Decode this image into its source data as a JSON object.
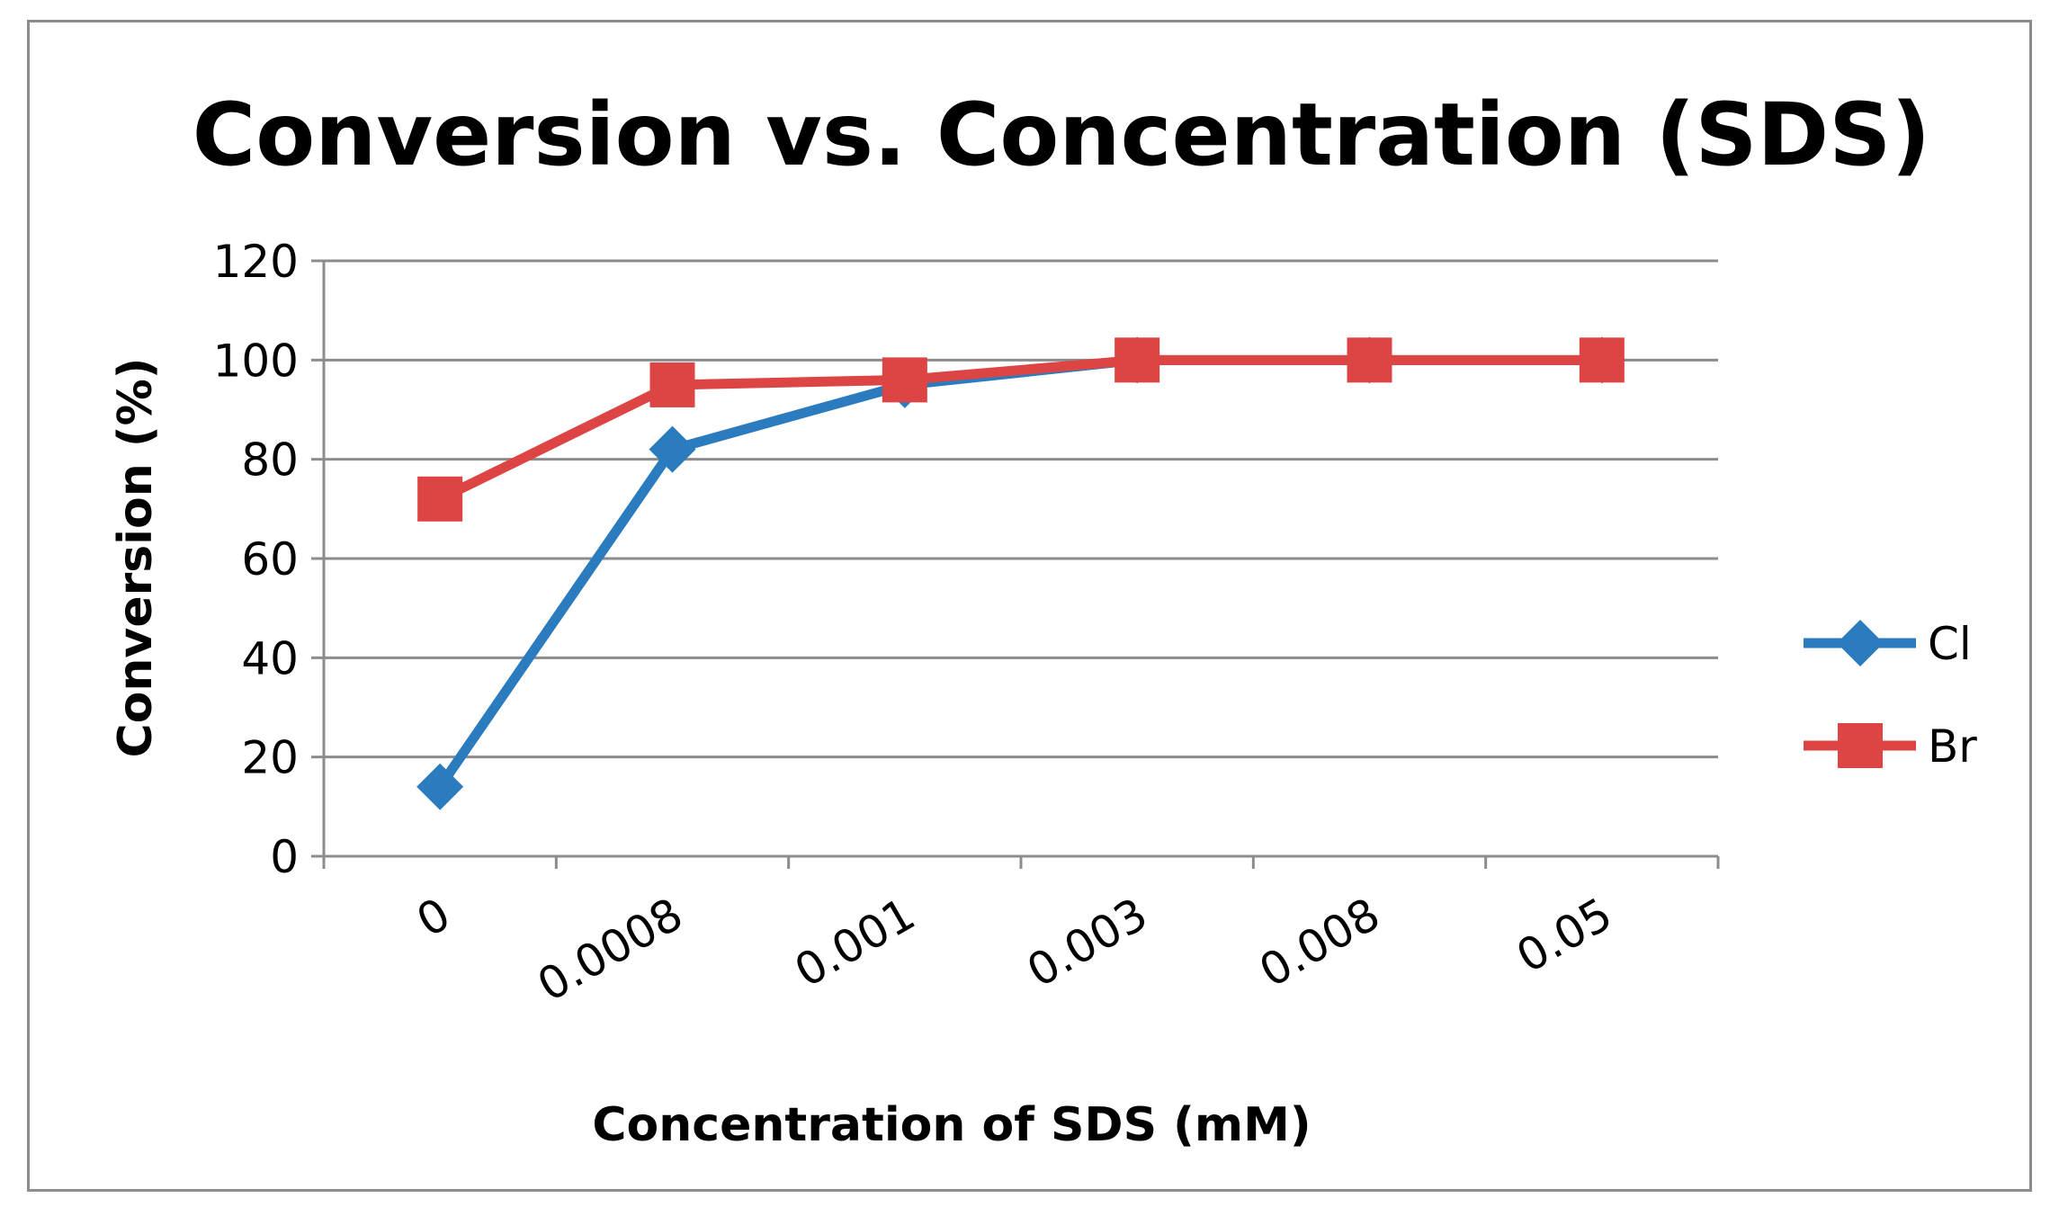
{
  "chart_data": {
    "type": "line",
    "title": "Conversion vs. Concentration (SDS)",
    "xlabel": "Concentration of  SDS (mM)",
    "ylabel": "Conversion (%)",
    "categories": [
      "0",
      "0.0008",
      "0.001",
      "0.003",
      "0.008",
      "0.05"
    ],
    "ylim": [
      0,
      120
    ],
    "yticks": [
      0,
      20,
      40,
      60,
      80,
      100,
      120
    ],
    "grid": true,
    "legend_position": "right",
    "series": [
      {
        "name": "Cl",
        "color": "#2b7bbf",
        "marker": "diamond",
        "values": [
          14,
          82,
          95,
          100,
          100,
          100
        ]
      },
      {
        "name": "Br",
        "color": "#dd4444",
        "marker": "square",
        "values": [
          72,
          95,
          96,
          100,
          100,
          100
        ]
      }
    ]
  }
}
